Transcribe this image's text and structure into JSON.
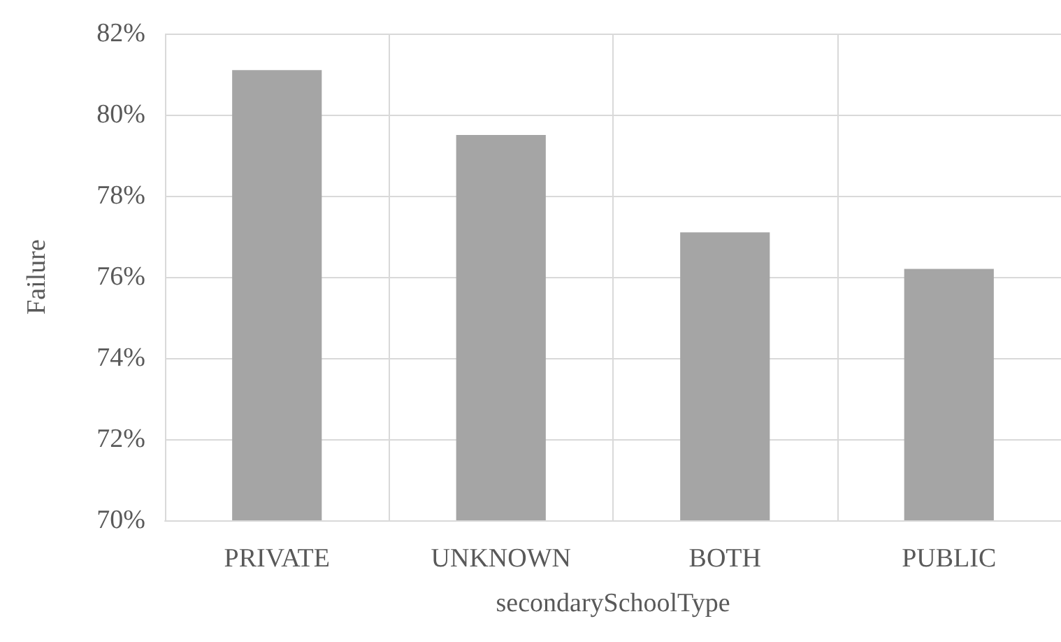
{
  "chart_data": {
    "type": "bar",
    "xlabel": "secondarySchoolType",
    "ylabel": "Failure",
    "categories": [
      "PRIVATE",
      "UNKNOWN",
      "BOTH",
      "PUBLIC"
    ],
    "values": [
      81.1,
      79.5,
      77.1,
      76.2
    ],
    "color": "#a5a5a5",
    "ylim": [
      70,
      82
    ],
    "yticks": [
      {
        "value": 70,
        "label": "70%"
      },
      {
        "value": 72,
        "label": "72%"
      },
      {
        "value": 74,
        "label": "74%"
      },
      {
        "value": 76,
        "label": "76%"
      },
      {
        "value": 78,
        "label": "78%"
      },
      {
        "value": 80,
        "label": "80%"
      },
      {
        "value": 82,
        "label": "82%"
      }
    ],
    "grid": true
  }
}
